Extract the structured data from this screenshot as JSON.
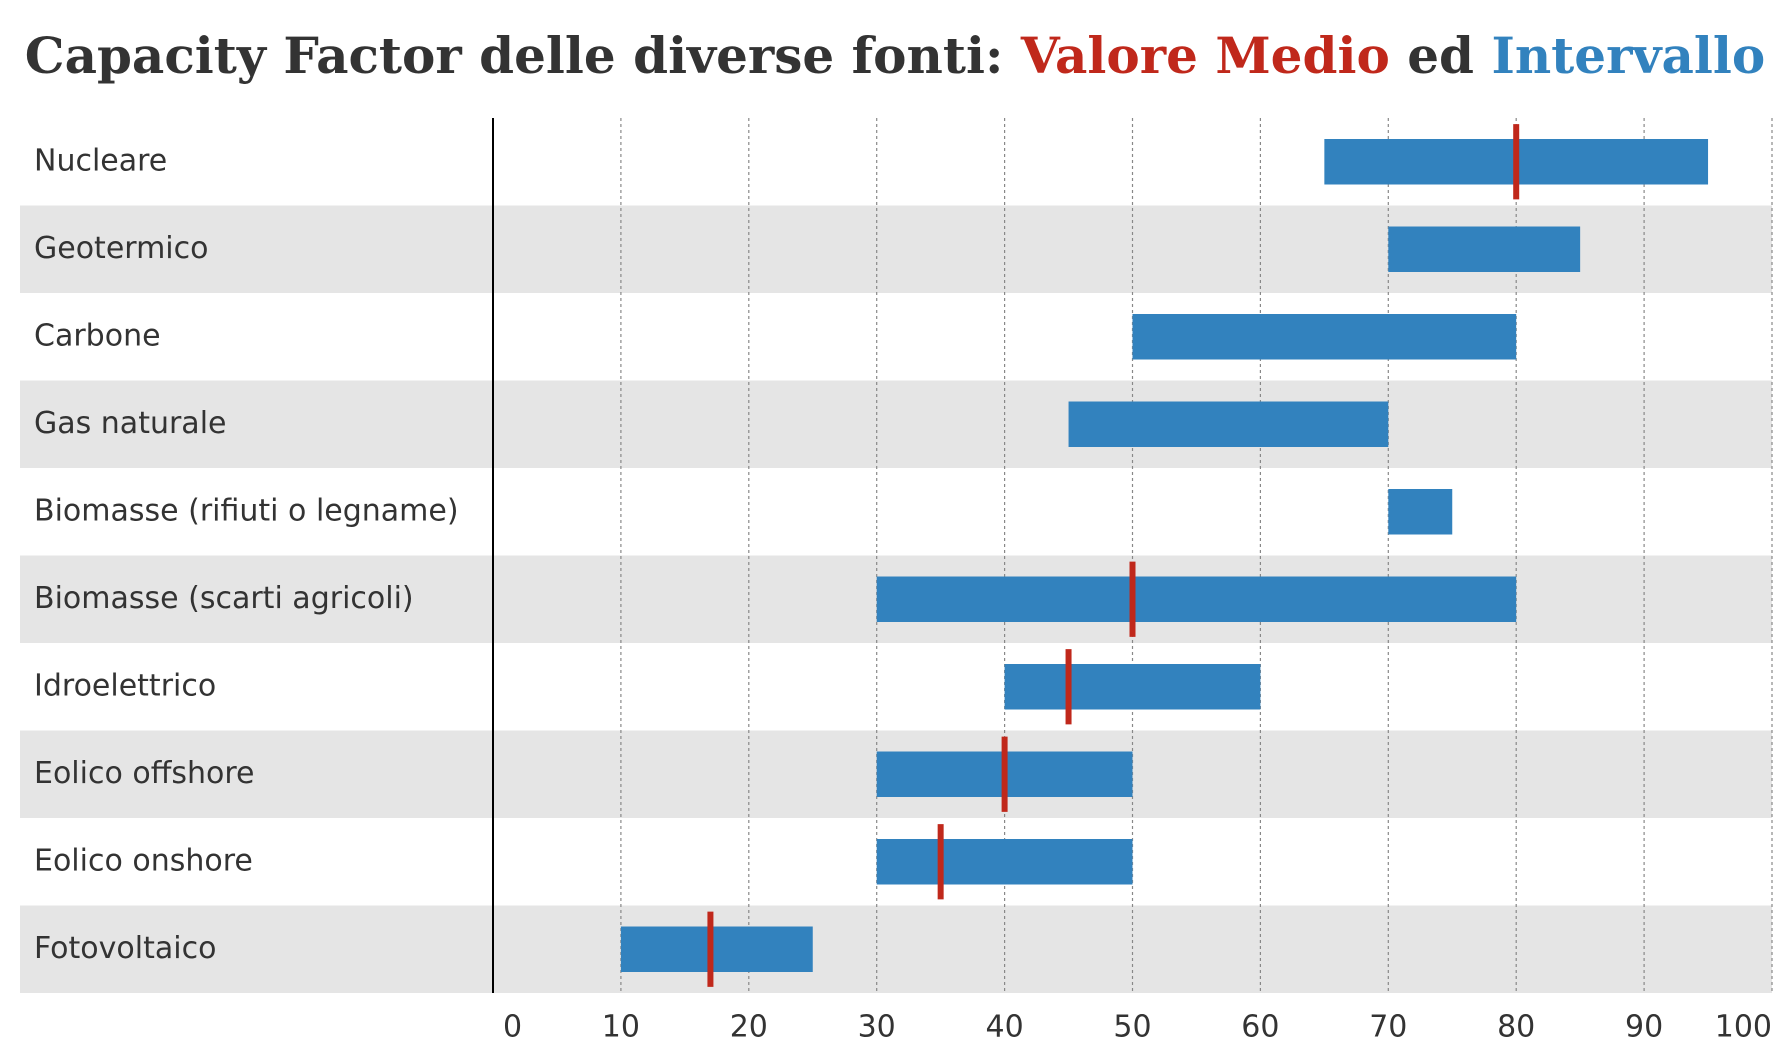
{
  "chart_data": {
    "type": "range-bar",
    "title": "Capacity Factor delle diverse fonti:",
    "title_connector": "ed",
    "categories": [
      "Nucleare",
      "Geotermico",
      "Carbone",
      "Gas naturale",
      "Biomasse (rifiuti o legname)",
      "Biomasse (scarti agricoli)",
      "Idroelettrico",
      "Eolico offshore",
      "Eolico onshore",
      "Fotovoltaico"
    ],
    "series": [
      {
        "name": "Valore Medio",
        "color": "#c0281b",
        "values": [
          80,
          null,
          null,
          null,
          null,
          50,
          45,
          40,
          35,
          17
        ]
      },
      {
        "name": "Intervallo",
        "color": "#3282be",
        "low": [
          65,
          70,
          50,
          45,
          70,
          30,
          40,
          30,
          30,
          10
        ],
        "high": [
          95,
          85,
          80,
          70,
          75,
          80,
          60,
          50,
          50,
          25
        ]
      }
    ],
    "xlim": [
      0,
      100
    ],
    "xticks": [
      0,
      10,
      20,
      30,
      40,
      50,
      60,
      70,
      80,
      90,
      100
    ],
    "grid": true
  }
}
